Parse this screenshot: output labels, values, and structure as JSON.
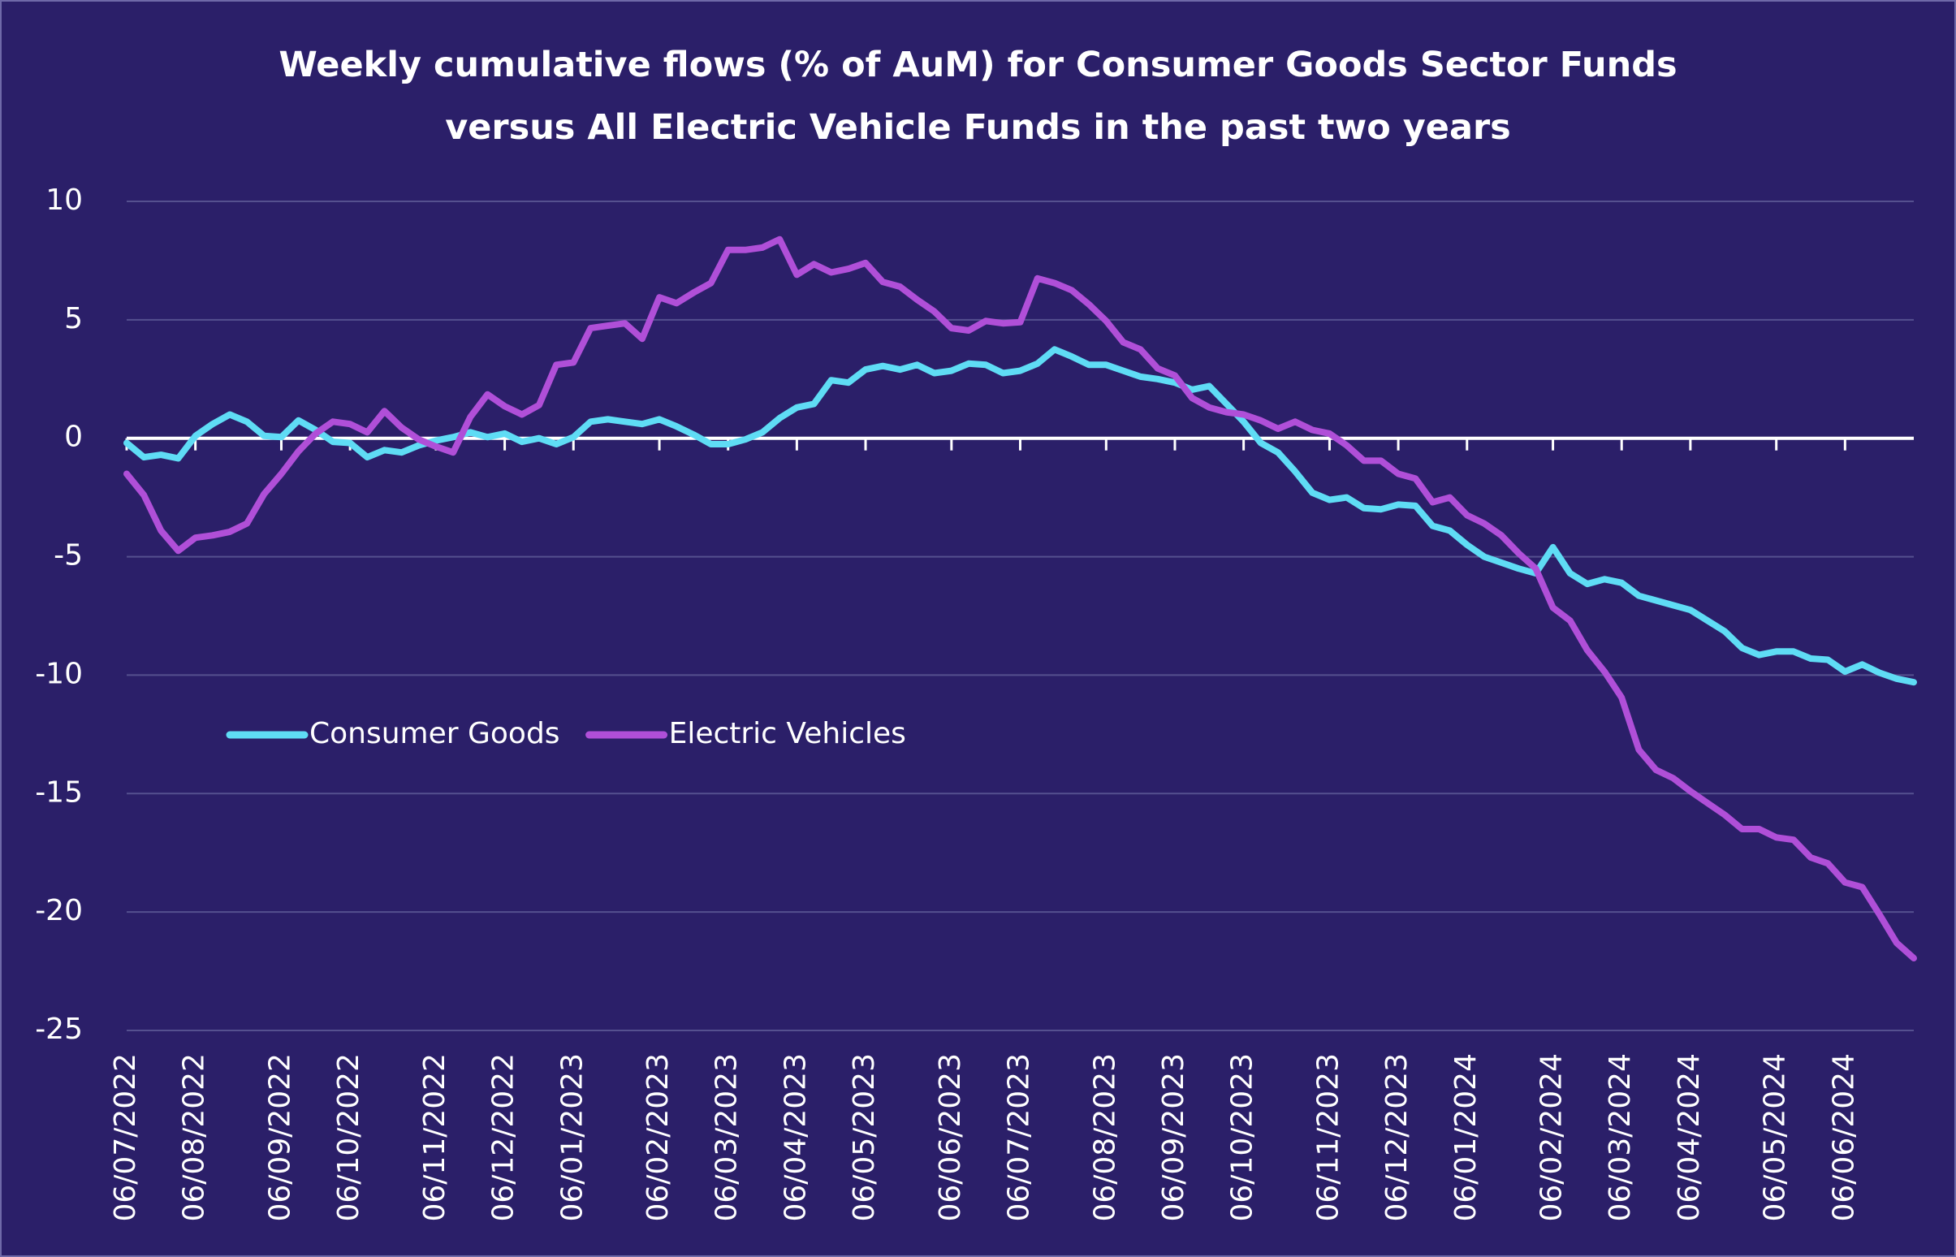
{
  "chart_data": {
    "type": "line",
    "title": "Weekly cumulative flows (% of AuM) for Consumer Goods Sector Funds\nversus All Electric Vehicle Funds in the past two years",
    "categories": [
      "06/07/2022",
      null,
      null,
      null,
      "06/08/2022",
      null,
      null,
      null,
      null,
      "06/09/2022",
      null,
      null,
      null,
      "06/10/2022",
      null,
      null,
      null,
      null,
      "06/11/2022",
      null,
      null,
      null,
      "06/12/2022",
      null,
      null,
      null,
      "06/01/2023",
      null,
      null,
      null,
      null,
      "06/02/2023",
      null,
      null,
      null,
      "06/03/2023",
      null,
      null,
      null,
      "06/04/2023",
      null,
      null,
      null,
      "06/05/2023",
      null,
      null,
      null,
      null,
      "06/06/2023",
      null,
      null,
      null,
      "06/07/2023",
      null,
      null,
      null,
      null,
      "06/08/2023",
      null,
      null,
      null,
      "06/09/2023",
      null,
      null,
      null,
      "06/10/2023",
      null,
      null,
      null,
      null,
      "06/11/2023",
      null,
      null,
      null,
      "06/12/2023",
      null,
      null,
      null,
      "06/01/2024",
      null,
      null,
      null,
      null,
      "06/02/2024",
      null,
      null,
      null,
      "06/03/2024",
      null,
      null,
      null,
      "06/04/2024",
      null,
      null,
      null,
      null,
      "06/05/2024",
      null,
      null,
      null,
      "06/06/2024",
      null,
      null,
      null,
      null
    ],
    "series": [
      {
        "name": "Consumer Goods",
        "color": "#5fdcf5",
        "values": [
          -0.2,
          -0.8,
          -0.7,
          -0.85,
          0.1,
          0.6,
          1.0,
          0.7,
          0.1,
          0.05,
          0.75,
          0.35,
          -0.15,
          -0.2,
          -0.8,
          -0.5,
          -0.6,
          -0.3,
          -0.1,
          0.05,
          0.25,
          0.05,
          0.2,
          -0.15,
          0,
          -0.25,
          0.05,
          0.7,
          0.8,
          0.7,
          0.6,
          0.8,
          0.5,
          0.15,
          -0.25,
          -0.25,
          -0.05,
          0.25,
          0.85,
          1.3,
          1.45,
          2.45,
          2.35,
          2.9,
          3.05,
          2.9,
          3.1,
          2.75,
          2.85,
          3.15,
          3.1,
          2.75,
          2.85,
          3.15,
          3.75,
          3.45,
          3.1,
          3.1,
          2.85,
          2.6,
          2.5,
          2.35,
          2.05,
          2.2,
          1.45,
          0.7,
          -0.2,
          -0.6,
          -1.4,
          -2.3,
          -2.6,
          -2.5,
          -2.95,
          -3.0,
          -2.8,
          -2.85,
          -3.7,
          -3.9,
          -4.5,
          -5.0,
          -5.25,
          -5.5,
          -5.7,
          -4.6,
          -5.7,
          -6.15,
          -5.95,
          -6.1,
          -6.65,
          -6.85,
          -7.05,
          -7.25,
          -7.7,
          -8.15,
          -8.85,
          -9.15,
          -9.0,
          -9.0,
          -9.3,
          -9.35,
          -9.85,
          -9.55,
          -9.9,
          -10.15,
          -10.3
        ]
      },
      {
        "name": "Electric Vehicles",
        "color": "#b04fd8",
        "values": [
          -1.5,
          -2.4,
          -3.9,
          -4.75,
          -4.2,
          -4.1,
          -3.95,
          -3.6,
          -2.35,
          -1.5,
          -0.55,
          0.2,
          0.7,
          0.6,
          0.25,
          1.15,
          0.45,
          -0.05,
          -0.35,
          -0.6,
          0.9,
          1.85,
          1.35,
          1.0,
          1.4,
          3.1,
          3.2,
          4.65,
          4.75,
          4.85,
          4.2,
          5.95,
          5.7,
          6.15,
          6.55,
          7.95,
          7.95,
          8.05,
          8.4,
          6.9,
          7.35,
          7.0,
          7.15,
          7.4,
          6.6,
          6.4,
          5.85,
          5.35,
          4.65,
          4.55,
          4.95,
          4.85,
          4.9,
          6.75,
          6.55,
          6.25,
          5.65,
          4.95,
          4.05,
          3.75,
          2.95,
          2.65,
          1.7,
          1.3,
          1.1,
          1.0,
          0.75,
          0.4,
          0.7,
          0.35,
          0.2,
          -0.3,
          -0.95,
          -0.95,
          -1.5,
          -1.7,
          -2.7,
          -2.5,
          -3.25,
          -3.6,
          -4.1,
          -4.85,
          -5.5,
          -7.15,
          -7.7,
          -8.95,
          -9.85,
          -10.95,
          -13.15,
          -14.0,
          -14.35,
          -14.9,
          -15.4,
          -15.9,
          -16.5,
          -16.5,
          -16.85,
          -16.95,
          -17.7,
          -17.95,
          -18.75,
          -18.95,
          -20.1,
          -21.3,
          -21.95
        ]
      }
    ],
    "ylim": [
      -25,
      10
    ],
    "yticks": [
      -25,
      -20,
      -15,
      -10,
      -5,
      0,
      5,
      10
    ],
    "grid": true
  }
}
